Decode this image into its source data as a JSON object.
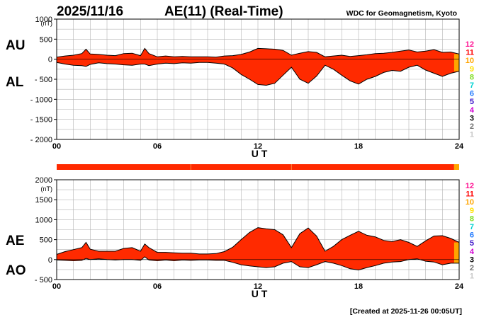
{
  "header": {
    "date": "2025/11/16",
    "title": "AE(11) (Real-Time)",
    "source": "WDC for Geomagnetism, Kyoto"
  },
  "footer": {
    "created": "[Created at 2025-11-26 00:05UT]"
  },
  "colors": {
    "fill": "#ff2a00",
    "outline": "#000000",
    "grid": "#b4b4b4",
    "bar_main": "#ff2a00",
    "bar_tail": "#ffa500"
  },
  "station_legend": [
    {
      "label": "12",
      "color": "#ff1493"
    },
    {
      "label": "11",
      "color": "#ff0000"
    },
    {
      "label": "10",
      "color": "#ffa500"
    },
    {
      "label": "9",
      "color": "#ffe000"
    },
    {
      "label": "8",
      "color": "#7ddc1f"
    },
    {
      "label": "7",
      "color": "#00d2d2"
    },
    {
      "label": "6",
      "color": "#1e78ff"
    },
    {
      "label": "5",
      "color": "#3c14c8"
    },
    {
      "label": "4",
      "color": "#d200d2"
    },
    {
      "label": "3",
      "color": "#000000"
    },
    {
      "label": "2",
      "color": "#707070"
    },
    {
      "label": "1",
      "color": "#c8c8c8"
    }
  ],
  "coverage_bar": {
    "segments": [
      {
        "from": 0,
        "to": 23.7,
        "stations": "11"
      },
      {
        "from": 23.7,
        "to": 24,
        "stations": "10"
      }
    ],
    "dividers": [
      8,
      14
    ]
  },
  "chart_data": [
    {
      "type": "area",
      "name": "AU-AL",
      "series_labels": [
        "AU",
        "AL"
      ],
      "xlabel": "U T",
      "ylabel_unit": "(nT)",
      "xlim": [
        0,
        24
      ],
      "ylim": [
        -2000,
        1000
      ],
      "xticks": [
        0,
        6,
        12,
        18,
        24
      ],
      "xtick_labels": [
        "00",
        "06",
        "12",
        "18",
        "24"
      ],
      "yticks": [
        1000,
        500,
        0,
        -500,
        -1000,
        -1500,
        -2000
      ],
      "ytick_labels": [
        "1000",
        "500",
        "0",
        "- 500",
        "- 1000",
        "- 1500",
        "- 2000"
      ],
      "grid": true,
      "x": [
        0,
        0.5,
        1,
        1.5,
        1.75,
        2,
        2.5,
        3,
        3.5,
        4,
        4.5,
        5,
        5.25,
        5.5,
        6,
        6.5,
        7,
        7.5,
        8,
        8.5,
        9,
        9.5,
        10,
        10.5,
        11,
        11.5,
        12,
        12.5,
        13,
        13.5,
        14,
        14.5,
        15,
        15.5,
        16,
        16.5,
        17,
        17.5,
        18,
        18.5,
        19,
        19.5,
        20,
        20.5,
        21,
        21.5,
        22,
        22.5,
        23,
        23.5,
        24
      ],
      "upper": [
        50,
        80,
        100,
        140,
        250,
        130,
        120,
        100,
        90,
        140,
        150,
        90,
        270,
        140,
        60,
        80,
        60,
        70,
        60,
        60,
        60,
        50,
        80,
        90,
        120,
        180,
        270,
        260,
        250,
        220,
        100,
        150,
        190,
        170,
        60,
        80,
        100,
        70,
        90,
        110,
        140,
        150,
        170,
        200,
        230,
        180,
        200,
        240,
        170,
        180,
        130
      ],
      "lower": [
        -80,
        -120,
        -150,
        -160,
        -180,
        -130,
        -90,
        -110,
        -120,
        -140,
        -150,
        -120,
        -120,
        -160,
        -120,
        -100,
        -110,
        -90,
        -100,
        -80,
        -80,
        -100,
        -120,
        -220,
        -380,
        -500,
        -630,
        -650,
        -600,
        -400,
        -200,
        -500,
        -600,
        -420,
        -150,
        -250,
        -400,
        -540,
        -620,
        -500,
        -430,
        -330,
        -280,
        -300,
        -200,
        -150,
        -270,
        -350,
        -430,
        -350,
        -300
      ]
    },
    {
      "type": "area",
      "name": "AE-AO",
      "series_labels": [
        "AE",
        "AO"
      ],
      "xlabel": "U T",
      "ylabel_unit": "(nT)",
      "xlim": [
        0,
        24
      ],
      "ylim": [
        -500,
        2000
      ],
      "xticks": [
        0,
        6,
        12,
        18,
        24
      ],
      "xtick_labels": [
        "00",
        "06",
        "12",
        "18",
        "24"
      ],
      "yticks": [
        2000,
        1500,
        1000,
        500,
        0,
        -500
      ],
      "ytick_labels": [
        "2000",
        "1500",
        "1000",
        "500",
        "0",
        "- 500"
      ],
      "grid": true,
      "x": [
        0,
        0.5,
        1,
        1.5,
        1.75,
        2,
        2.5,
        3,
        3.5,
        4,
        4.5,
        5,
        5.25,
        5.5,
        6,
        6.5,
        7,
        7.5,
        8,
        8.5,
        9,
        9.5,
        10,
        10.5,
        11,
        11.5,
        12,
        12.5,
        13,
        13.5,
        14,
        14.5,
        15,
        15.5,
        16,
        16.5,
        17,
        17.5,
        18,
        18.5,
        19,
        19.5,
        20,
        20.5,
        21,
        21.5,
        22,
        22.5,
        23,
        23.5,
        24
      ],
      "upper": [
        130,
        200,
        250,
        300,
        430,
        260,
        210,
        210,
        210,
        280,
        300,
        210,
        390,
        300,
        180,
        180,
        170,
        160,
        160,
        140,
        140,
        150,
        200,
        310,
        500,
        680,
        800,
        770,
        750,
        620,
        300,
        650,
        790,
        590,
        210,
        330,
        500,
        610,
        710,
        610,
        570,
        480,
        450,
        500,
        430,
        330,
        470,
        590,
        600,
        530,
        430
      ],
      "lower": [
        -10,
        -20,
        -30,
        -20,
        30,
        0,
        20,
        0,
        -10,
        0,
        0,
        -20,
        70,
        -10,
        -30,
        -10,
        -30,
        -10,
        -20,
        -10,
        -10,
        -20,
        -20,
        -70,
        -130,
        -160,
        -180,
        -200,
        -180,
        -90,
        -50,
        -180,
        -200,
        -130,
        -50,
        -90,
        -150,
        -230,
        -260,
        -200,
        -150,
        -90,
        -60,
        -50,
        0,
        20,
        -40,
        -60,
        -130,
        -90,
        -90
      ]
    }
  ]
}
